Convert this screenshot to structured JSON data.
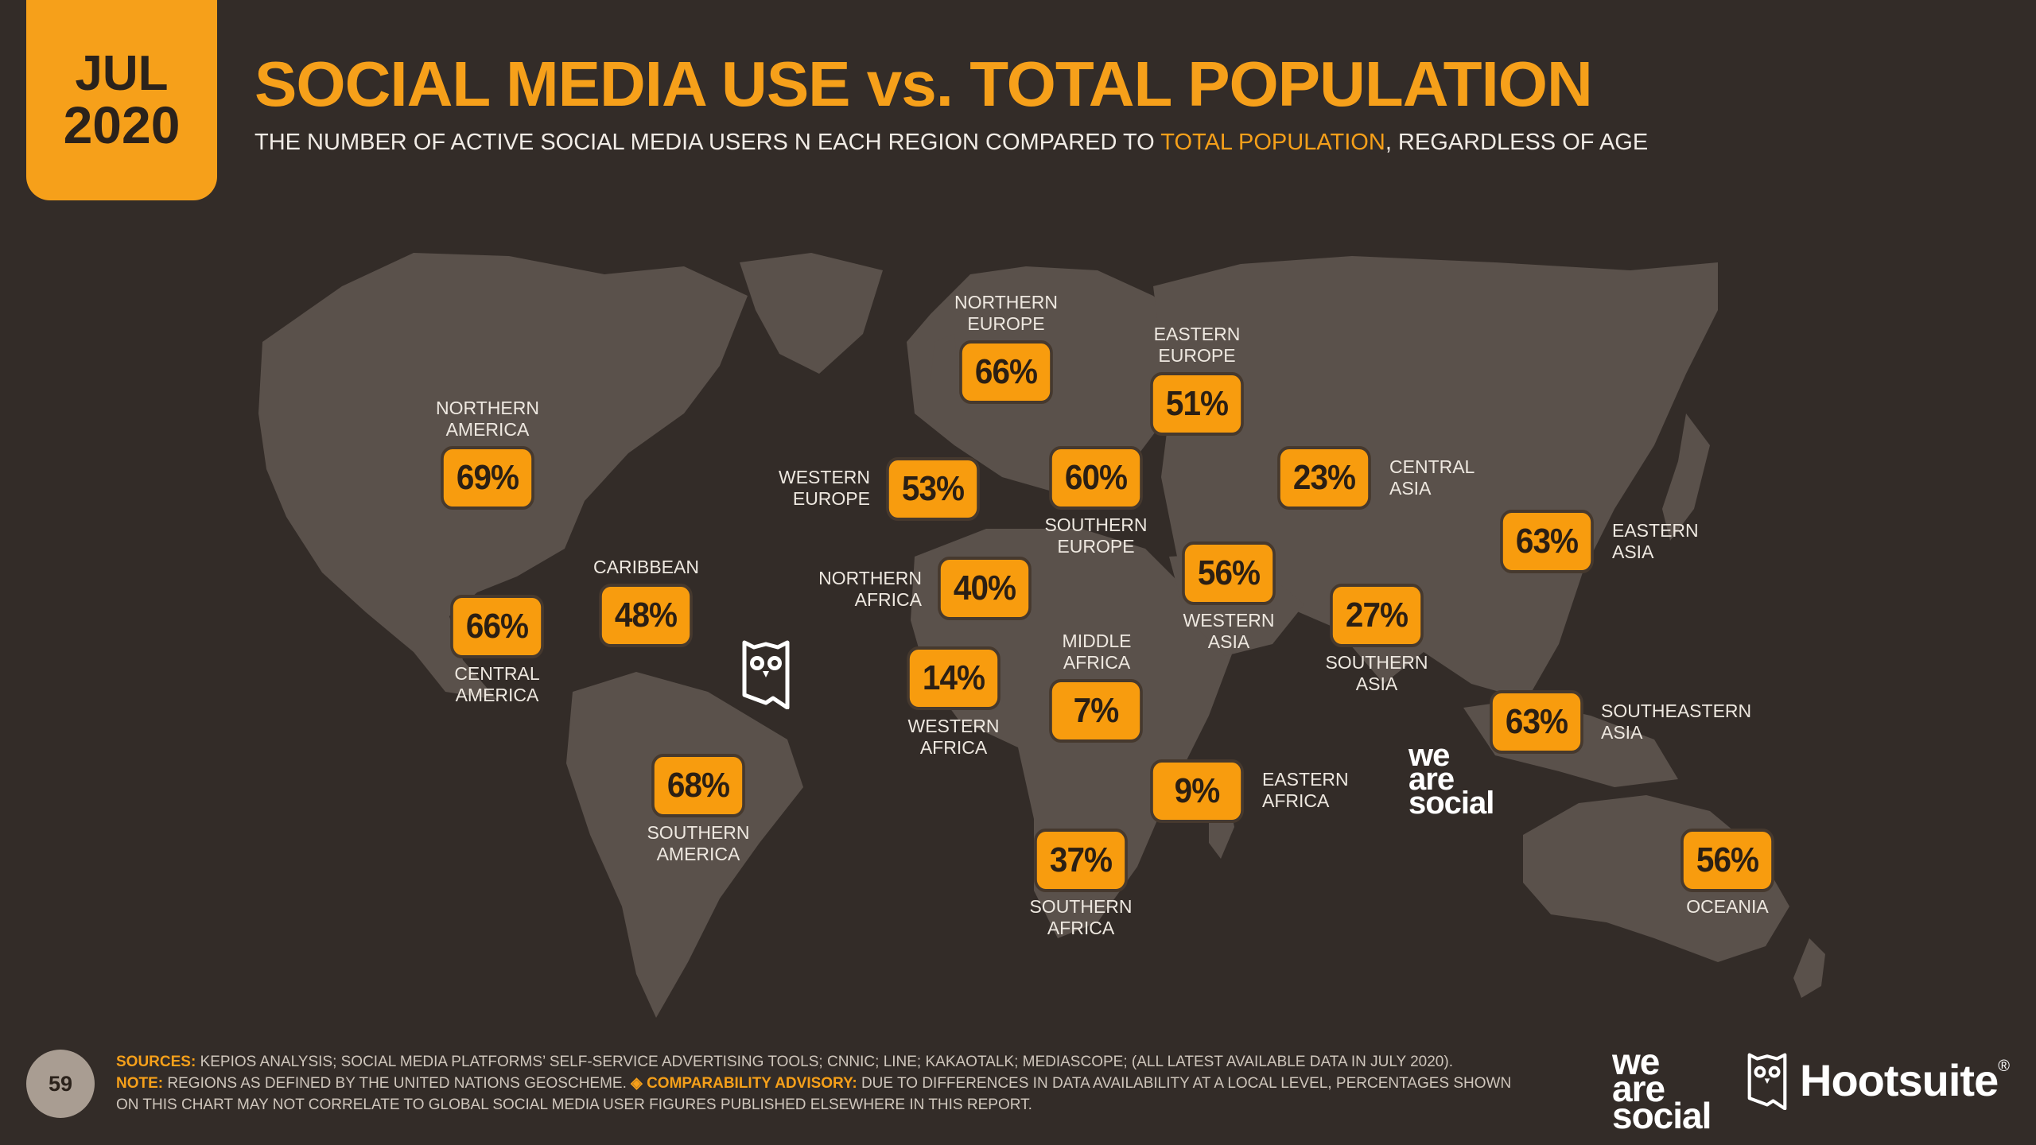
{
  "header": {
    "month": "JUL",
    "year": "2020",
    "title": "SOCIAL MEDIA USE vs. TOTAL POPULATION",
    "subtitle_pre": "THE NUMBER OF ACTIVE SOCIAL MEDIA USERS N EACH REGION COMPARED TO ",
    "subtitle_hl": "TOTAL POPULATION",
    "subtitle_post": ", REGARDLESS OF AGE"
  },
  "regions": {
    "northern_america": {
      "l1": "NORTHERN",
      "l2": "AMERICA",
      "value": "69%"
    },
    "central_america": {
      "l1": "CENTRAL",
      "l2": "AMERICA",
      "value": "66%"
    },
    "caribbean": {
      "l1": "CARIBBEAN",
      "value": "48%"
    },
    "southern_america": {
      "l1": "SOUTHERN",
      "l2": "AMERICA",
      "value": "68%"
    },
    "northern_europe": {
      "l1": "NORTHERN",
      "l2": "EUROPE",
      "value": "66%"
    },
    "western_europe": {
      "l1": "WESTERN",
      "l2": "EUROPE",
      "value": "53%"
    },
    "southern_europe": {
      "l1": "SOUTHERN",
      "l2": "EUROPE",
      "value": "60%"
    },
    "eastern_europe": {
      "l1": "EASTERN",
      "l2": "EUROPE",
      "value": "51%"
    },
    "northern_africa": {
      "l1": "NORTHERN",
      "l2": "AFRICA",
      "value": "40%"
    },
    "western_africa": {
      "l1": "WESTERN",
      "l2": "AFRICA",
      "value": "14%"
    },
    "middle_africa": {
      "l1": "MIDDLE",
      "l2": "AFRICA",
      "value": "7%"
    },
    "eastern_africa": {
      "l1": "EASTERN",
      "l2": "AFRICA",
      "value": "9%"
    },
    "southern_africa": {
      "l1": "SOUTHERN",
      "l2": "AFRICA",
      "value": "37%"
    },
    "western_asia": {
      "l1": "WESTERN",
      "l2": "ASIA",
      "value": "56%"
    },
    "central_asia": {
      "l1": "CENTRAL",
      "l2": "ASIA",
      "value": "23%"
    },
    "southern_asia": {
      "l1": "SOUTHERN",
      "l2": "ASIA",
      "value": "27%"
    },
    "eastern_asia": {
      "l1": "EASTERN",
      "l2": "ASIA",
      "value": "63%"
    },
    "southeastern_asia": {
      "l1": "SOUTHEASTERN",
      "l2": "ASIA",
      "value": "63%"
    },
    "oceania": {
      "l1": "OCEANIA",
      "value": "56%"
    }
  },
  "brand": {
    "we": "we",
    "are": "are",
    "social": "social",
    "hootsuite": "Hootsuite",
    "reg": "®"
  },
  "footer": {
    "page": "59",
    "sources_key": "SOURCES:",
    "sources": "KEPIOS ANALYSIS; SOCIAL MEDIA PLATFORMS’ SELF-SERVICE ADVERTISING TOOLS; CNNIC; LINE; KAKAOTALK; MEDIASCOPE; (ALL LATEST AVAILABLE DATA IN JULY 2020).",
    "note_key": "NOTE:",
    "note": "REGIONS AS DEFINED BY THE UNITED NATIONS GEOSCHEME.",
    "advisory_key": "◈ COMPARABILITY ADVISORY:",
    "advisory": "DUE TO DIFFERENCES IN DATA AVAILABILITY AT A LOCAL LEVEL, PERCENTAGES SHOWN ON THIS CHART MAY NOT CORRELATE TO GLOBAL SOCIAL MEDIA USER FIGURES PUBLISHED ELSEWHERE IN THIS REPORT."
  }
}
